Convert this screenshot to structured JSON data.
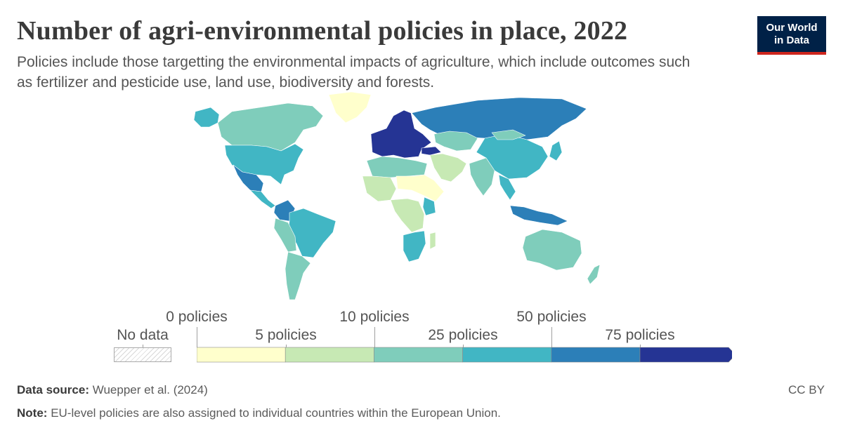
{
  "header": {
    "title": "Number of agri-environmental policies in place, 2022",
    "subtitle": "Policies include those targetting the environmental impacts of agriculture, which include outcomes such as fertilizer and pesticide use, land use, biodiversity and forests."
  },
  "logo": {
    "line1": "Our World",
    "line2": "in Data"
  },
  "legend": {
    "no_data_label": "No data",
    "upper_labels": [
      "0 policies",
      "10 policies",
      "50 policies"
    ],
    "lower_labels": [
      "5 policies",
      "25 policies",
      "75 policies"
    ],
    "bins": [
      {
        "from": 0,
        "to": 5,
        "color": "#ffffcc"
      },
      {
        "from": 5,
        "to": 10,
        "color": "#c7e9b4"
      },
      {
        "from": 10,
        "to": 25,
        "color": "#7fcdbb"
      },
      {
        "from": 25,
        "to": 50,
        "color": "#41b6c4"
      },
      {
        "from": 50,
        "to": 75,
        "color": "#2c7fb8"
      },
      {
        "from": 75,
        "to": null,
        "color": "#253494"
      }
    ]
  },
  "footer": {
    "source_label": "Data source:",
    "source_text": "Wuepper et al. (2024)",
    "note_label": "Note:",
    "note_text": "EU-level policies are also assigned to individual countries within the European Union.",
    "license": "CC BY"
  },
  "map_regions": [
    {
      "name": "Canada",
      "color": "#7fcdbb"
    },
    {
      "name": "United States",
      "color": "#41b6c4"
    },
    {
      "name": "Greenland",
      "color": "#ffffcc"
    },
    {
      "name": "Alaska",
      "color": "#41b6c4"
    },
    {
      "name": "Mexico",
      "color": "#2c7fb8"
    },
    {
      "name": "Central America",
      "color": "#41b6c4"
    },
    {
      "name": "Colombia",
      "color": "#2c7fb8"
    },
    {
      "name": "Brazil",
      "color": "#41b6c4"
    },
    {
      "name": "Peru and Bolivia",
      "color": "#7fcdbb"
    },
    {
      "name": "Argentina and Chile",
      "color": "#7fcdbb"
    },
    {
      "name": "European Union",
      "color": "#253494"
    },
    {
      "name": "Turkey",
      "color": "#253494"
    },
    {
      "name": "Russia",
      "color": "#2c7fb8"
    },
    {
      "name": "China",
      "color": "#41b6c4"
    },
    {
      "name": "Mongolia",
      "color": "#7fcdbb"
    },
    {
      "name": "Kazakhstan",
      "color": "#7fcdbb"
    },
    {
      "name": "India",
      "color": "#7fcdbb"
    },
    {
      "name": "Middle East",
      "color": "#c7e9b4"
    },
    {
      "name": "Southeast Asia",
      "color": "#41b6c4"
    },
    {
      "name": "Indonesia",
      "color": "#2c7fb8"
    },
    {
      "name": "Japan",
      "color": "#41b6c4"
    },
    {
      "name": "North Africa",
      "color": "#7fcdbb"
    },
    {
      "name": "West Africa",
      "color": "#c7e9b4"
    },
    {
      "name": "Sahel and Horn",
      "color": "#ffffcc"
    },
    {
      "name": "Central Africa",
      "color": "#c7e9b4"
    },
    {
      "name": "Kenya",
      "color": "#41b6c4"
    },
    {
      "name": "Southern Africa",
      "color": "#41b6c4"
    },
    {
      "name": "Madagascar",
      "color": "#c7e9b4"
    },
    {
      "name": "Australia",
      "color": "#7fcdbb"
    },
    {
      "name": "New Zealand",
      "color": "#7fcdbb"
    }
  ]
}
